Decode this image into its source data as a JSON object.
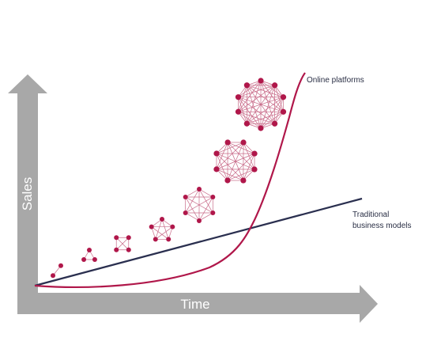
{
  "axes": {
    "x_label": "Time",
    "y_label": "Sales",
    "axis_color": "#a8a8a8"
  },
  "curves": {
    "online": {
      "label": "Online platforms",
      "color": "#b0174a"
    },
    "traditional": {
      "label_line1": "Traditional",
      "label_line2": "business models",
      "color": "#2a2f4f"
    }
  },
  "network": {
    "node_color": "#b0174a",
    "edge_color": "#c86a88",
    "node_counts": [
      2,
      3,
      4,
      5,
      6,
      8,
      10
    ],
    "network_density": "fully-connected"
  }
}
